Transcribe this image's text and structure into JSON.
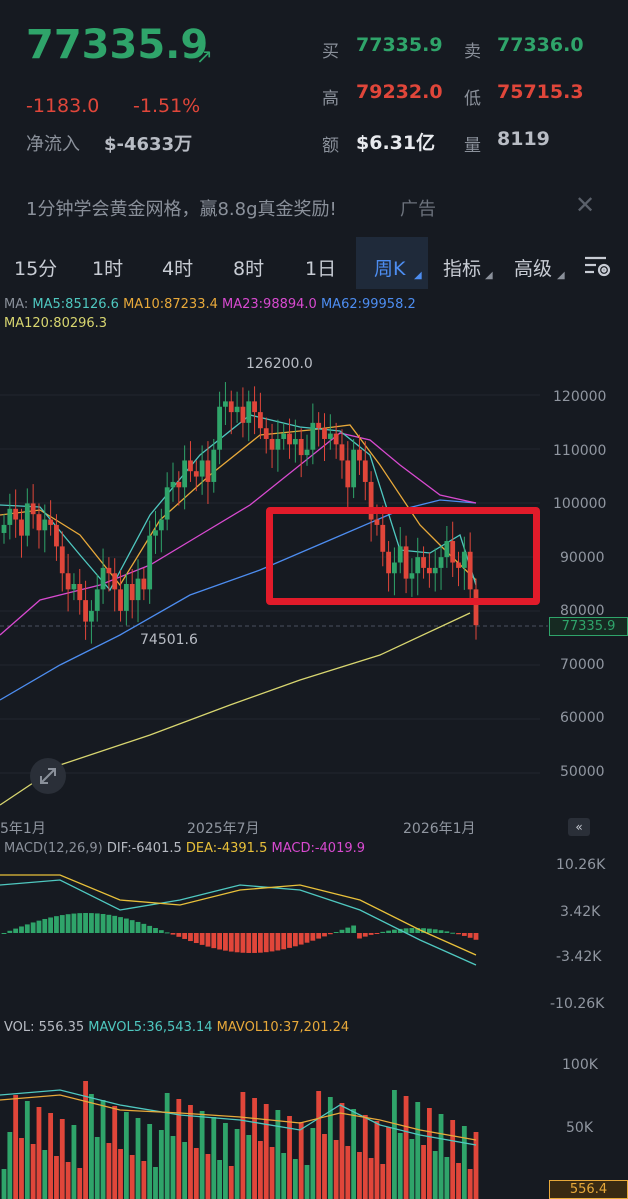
{
  "quote": {
    "price": "77335.9",
    "change": "-1183.0",
    "change_pct": "-1.51%",
    "net_inflow_label": "净流入",
    "net_inflow_value": "$-4633万",
    "bid_label": "买",
    "bid": "77335.9",
    "ask_label": "卖",
    "ask": "77336.0",
    "high_label": "高",
    "high": "79232.0",
    "low_label": "低",
    "low": "75715.3",
    "amount_label": "额",
    "amount": "$6.31亿",
    "volume_label": "量",
    "volume": "8119"
  },
  "ad": {
    "text": "1分钟学会黄金网格，赢8.8g真金奖励!",
    "tag": "广告"
  },
  "tabs": [
    "15分",
    "1时",
    "4时",
    "8时",
    "1日",
    "周K",
    "指标",
    "高级"
  ],
  "active_tab": "周K",
  "ma_legend": {
    "prefix": "MA:",
    "ma5": "MA5:85126.6",
    "ma10": "MA10:87233.4",
    "ma23": "MA23:98894.0",
    "ma62": "MA62:99958.2",
    "ma120": "MA120:80296.3"
  },
  "macd_legend": {
    "label": "MACD(12,26,9)",
    "dif": "DIF:-6401.5",
    "dea": "DEA:-4391.5",
    "macd": "MACD:-4019.9"
  },
  "vol_legend": {
    "vol": "VOL: 556.35",
    "mavol5": "MAVOL5:36,543.14",
    "mavol10": "MAVOL10:37,201.24"
  },
  "colors": {
    "up": "#2fa46a",
    "down": "#e0463a",
    "highlight": "#e11b2a"
  },
  "chart_data": {
    "type": "candlestick",
    "price_axis": [
      "120000",
      "110000",
      "100000",
      "90000",
      "80000",
      "70000",
      "60000",
      "50000"
    ],
    "current_price_tag": "77335.9",
    "max_label": "126200.0",
    "min_label": "74501.6",
    "time_axis": [
      "5年1月",
      "2025年7月",
      "2026年1月"
    ],
    "macd_axis": [
      "10.26K",
      "3.42K",
      "-3.42K",
      "-10.26K"
    ],
    "vol_axis": [
      "100K",
      "50K"
    ],
    "vol_last": "556.4"
  }
}
